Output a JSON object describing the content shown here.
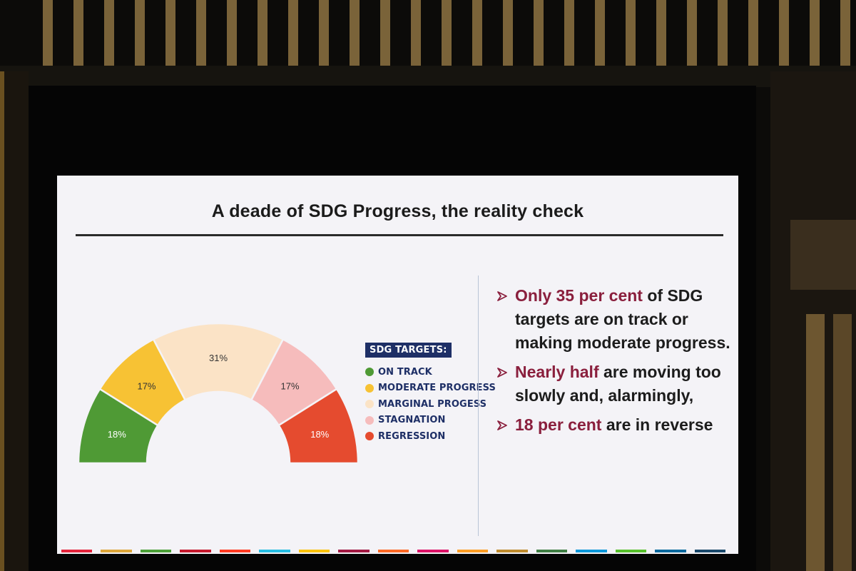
{
  "slide": {
    "title": "A deade of SDG Progress, the reality check"
  },
  "chart_data": {
    "type": "pie",
    "subtype": "half-donut",
    "legend_title": "SDG TARGETS:",
    "legend_position": "right",
    "categories": [
      "ON TRACK",
      "MODERATE PROGRESS",
      "MARGINAL PROGESS",
      "STAGNATION",
      "REGRESSION"
    ],
    "values": [
      18,
      17,
      31,
      17,
      18
    ],
    "labels": [
      "18%",
      "17%",
      "31%",
      "17%",
      "18%"
    ],
    "colors": [
      "#4f9a35",
      "#f7c234",
      "#fbe3c6",
      "#f6bcbc",
      "#e54b2f"
    ]
  },
  "bullets": [
    {
      "highlight": "Only 35 per cent",
      "rest": " of SDG targets are on track or making moderate progress."
    },
    {
      "highlight": "Nearly half",
      "rest": " are moving too slowly and, alarmingly,"
    },
    {
      "highlight": "18 per cent",
      "rest": " are in reverse"
    }
  ],
  "strip_colors": [
    "#e5243b",
    "#dda63a",
    "#4c9f38",
    "#c5192d",
    "#ff3a21",
    "#26bde2",
    "#fcc30b",
    "#a21942",
    "#fd6925",
    "#dd1367",
    "#fd9d24",
    "#bf8b2e",
    "#3f7e44",
    "#0a97d9",
    "#56c02b",
    "#00689d",
    "#19486a"
  ],
  "bullet_icon": "arrowhead-icon"
}
